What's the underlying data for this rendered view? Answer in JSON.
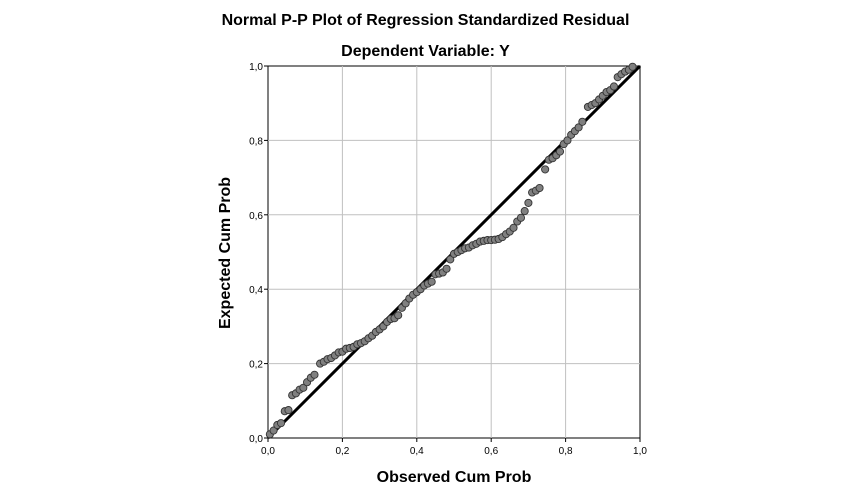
{
  "chart_data": {
    "type": "scatter",
    "title": "Normal P-P Plot of Regression Standardized Residual",
    "subtitle": "Dependent Variable: Y",
    "xlabel": "Observed Cum Prob",
    "ylabel": "Expected Cum Prob",
    "xlim": [
      0,
      1
    ],
    "ylim": [
      0,
      1
    ],
    "x_ticks": [
      "0,0",
      "0,2",
      "0,4",
      "0,6",
      "0,8",
      "1,0"
    ],
    "y_ticks": [
      "0,0",
      "0,2",
      "0,4",
      "0,6",
      "0,8",
      "1,0"
    ],
    "grid": true,
    "reference_line": {
      "x": [
        0,
        1
      ],
      "y": [
        0,
        1
      ]
    },
    "colors": {
      "point_fill": "#808080",
      "point_stroke": "#333333",
      "line": "#000000",
      "grid": "#c0c0c0"
    },
    "points": [
      [
        0.005,
        0.01
      ],
      [
        0.015,
        0.02
      ],
      [
        0.025,
        0.035
      ],
      [
        0.035,
        0.04
      ],
      [
        0.045,
        0.072
      ],
      [
        0.055,
        0.075
      ],
      [
        0.065,
        0.115
      ],
      [
        0.075,
        0.12
      ],
      [
        0.085,
        0.13
      ],
      [
        0.095,
        0.135
      ],
      [
        0.105,
        0.15
      ],
      [
        0.115,
        0.162
      ],
      [
        0.125,
        0.17
      ],
      [
        0.14,
        0.2
      ],
      [
        0.15,
        0.205
      ],
      [
        0.16,
        0.212
      ],
      [
        0.17,
        0.215
      ],
      [
        0.18,
        0.222
      ],
      [
        0.19,
        0.23
      ],
      [
        0.2,
        0.232
      ],
      [
        0.21,
        0.24
      ],
      [
        0.22,
        0.242
      ],
      [
        0.23,
        0.245
      ],
      [
        0.24,
        0.252
      ],
      [
        0.25,
        0.255
      ],
      [
        0.26,
        0.26
      ],
      [
        0.27,
        0.268
      ],
      [
        0.28,
        0.275
      ],
      [
        0.29,
        0.285
      ],
      [
        0.3,
        0.292
      ],
      [
        0.31,
        0.3
      ],
      [
        0.32,
        0.312
      ],
      [
        0.33,
        0.32
      ],
      [
        0.34,
        0.322
      ],
      [
        0.35,
        0.33
      ],
      [
        0.36,
        0.35
      ],
      [
        0.37,
        0.362
      ],
      [
        0.38,
        0.375
      ],
      [
        0.39,
        0.385
      ],
      [
        0.4,
        0.392
      ],
      [
        0.41,
        0.4
      ],
      [
        0.42,
        0.41
      ],
      [
        0.43,
        0.415
      ],
      [
        0.44,
        0.42
      ],
      [
        0.45,
        0.44
      ],
      [
        0.46,
        0.442
      ],
      [
        0.47,
        0.445
      ],
      [
        0.48,
        0.455
      ],
      [
        0.49,
        0.48
      ],
      [
        0.5,
        0.495
      ],
      [
        0.51,
        0.5
      ],
      [
        0.52,
        0.505
      ],
      [
        0.53,
        0.51
      ],
      [
        0.54,
        0.512
      ],
      [
        0.55,
        0.518
      ],
      [
        0.56,
        0.522
      ],
      [
        0.57,
        0.528
      ],
      [
        0.58,
        0.53
      ],
      [
        0.59,
        0.532
      ],
      [
        0.6,
        0.532
      ],
      [
        0.61,
        0.533
      ],
      [
        0.62,
        0.535
      ],
      [
        0.63,
        0.54
      ],
      [
        0.64,
        0.548
      ],
      [
        0.65,
        0.555
      ],
      [
        0.66,
        0.565
      ],
      [
        0.67,
        0.582
      ],
      [
        0.68,
        0.592
      ],
      [
        0.69,
        0.61
      ],
      [
        0.7,
        0.632
      ],
      [
        0.71,
        0.66
      ],
      [
        0.72,
        0.665
      ],
      [
        0.73,
        0.672
      ],
      [
        0.745,
        0.722
      ],
      [
        0.755,
        0.748
      ],
      [
        0.765,
        0.752
      ],
      [
        0.775,
        0.76
      ],
      [
        0.785,
        0.77
      ],
      [
        0.795,
        0.79
      ],
      [
        0.805,
        0.8
      ],
      [
        0.815,
        0.815
      ],
      [
        0.825,
        0.825
      ],
      [
        0.835,
        0.835
      ],
      [
        0.845,
        0.85
      ],
      [
        0.86,
        0.89
      ],
      [
        0.87,
        0.895
      ],
      [
        0.88,
        0.9
      ],
      [
        0.89,
        0.91
      ],
      [
        0.9,
        0.92
      ],
      [
        0.91,
        0.93
      ],
      [
        0.92,
        0.935
      ],
      [
        0.93,
        0.945
      ],
      [
        0.94,
        0.97
      ],
      [
        0.95,
        0.978
      ],
      [
        0.96,
        0.985
      ],
      [
        0.97,
        0.99
      ],
      [
        0.98,
        0.998
      ]
    ]
  }
}
